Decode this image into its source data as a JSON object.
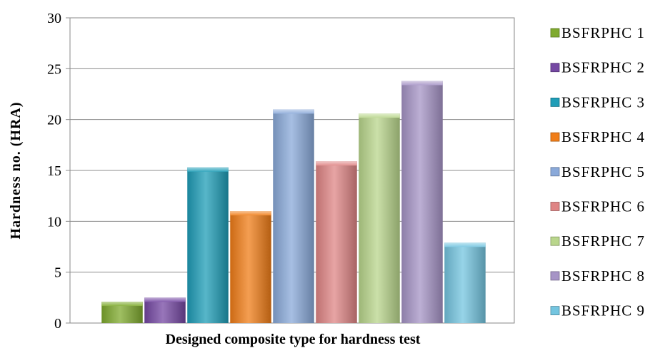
{
  "chart_data": {
    "type": "bar",
    "title": "",
    "xlabel": "Designed composite type for hardness test",
    "ylabel": "Hardness no. (HRA)",
    "ylim": [
      0,
      30
    ],
    "yticks": [
      0,
      5,
      10,
      15,
      20,
      25,
      30
    ],
    "grid": true,
    "legend_position": "right",
    "series": [
      {
        "name": "BSFRPHC 1",
        "value": 2.1,
        "color": "#7faa2e"
      },
      {
        "name": "BSFRPHC 2",
        "value": 2.5,
        "color": "#7548a3"
      },
      {
        "name": "BSFRPHC 3",
        "value": 15.3,
        "color": "#1f9db7"
      },
      {
        "name": "BSFRPHC 4",
        "value": 11.0,
        "color": "#f07d18"
      },
      {
        "name": "BSFRPHC 5",
        "value": 21.0,
        "color": "#8aa9d9"
      },
      {
        "name": "BSFRPHC 6",
        "value": 15.9,
        "color": "#df8585"
      },
      {
        "name": "BSFRPHC 7",
        "value": 20.6,
        "color": "#b9d68c"
      },
      {
        "name": "BSFRPHC 8",
        "value": 23.8,
        "color": "#a694c6"
      },
      {
        "name": "BSFRPHC 9",
        "value": 7.9,
        "color": "#74c5e0"
      }
    ]
  }
}
